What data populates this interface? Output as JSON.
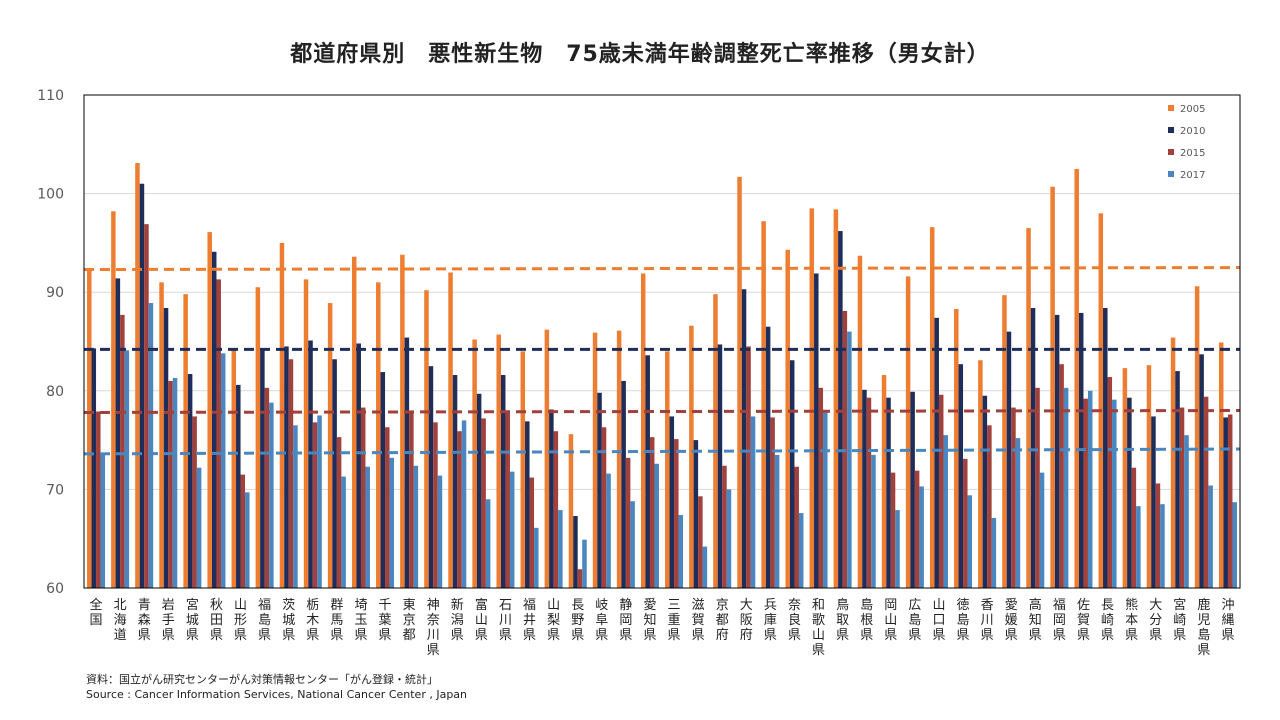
{
  "chart_data": {
    "type": "bar",
    "title": "都道府県別　悪性新生物　75歳未満年齢調整死亡率推移（男女計）",
    "xlabel": "",
    "ylabel": "",
    "ylim": [
      60,
      110
    ],
    "yticks": [
      60,
      70,
      80,
      90,
      100,
      110
    ],
    "legend_position": "top-right",
    "categories": [
      "全国",
      "北海道",
      "青森県",
      "岩手県",
      "宮城県",
      "秋田県",
      "山形県",
      "福島県",
      "茨城県",
      "栃木県",
      "群馬県",
      "埼玉県",
      "千葉県",
      "東京都",
      "神奈川県",
      "新潟県",
      "富山県",
      "石川県",
      "福井県",
      "山梨県",
      "長野県",
      "岐阜県",
      "静岡県",
      "愛知県",
      "三重県",
      "滋賀県",
      "京都府",
      "大阪府",
      "兵庫県",
      "奈良県",
      "和歌山県",
      "鳥取県",
      "島根県",
      "岡山県",
      "広島県",
      "山口県",
      "徳島県",
      "香川県",
      "愛媛県",
      "高知県",
      "福岡県",
      "佐賀県",
      "長崎県",
      "熊本県",
      "大分県",
      "宮崎県",
      "鹿児島県",
      "沖縄県"
    ],
    "series": [
      {
        "name": "2005",
        "color": "#ed7d31",
        "values": [
          92.4,
          98.2,
          103.1,
          91.0,
          89.8,
          96.1,
          84.3,
          90.5,
          95.0,
          91.3,
          88.9,
          93.6,
          91.0,
          93.8,
          90.2,
          92.0,
          85.2,
          85.7,
          84.0,
          86.2,
          75.6,
          85.9,
          86.1,
          91.9,
          84.0,
          86.6,
          89.8,
          101.7,
          97.2,
          94.3,
          98.5,
          98.4,
          93.7,
          81.6,
          91.6,
          96.6,
          88.3,
          83.1,
          89.7,
          96.5,
          100.7,
          102.5,
          98.0,
          82.3,
          82.6,
          85.4,
          90.6,
          84.9
        ]
      },
      {
        "name": "2010",
        "color": "#1f2d5a",
        "values": [
          84.3,
          91.4,
          101.0,
          88.4,
          81.7,
          94.1,
          80.6,
          84.1,
          84.5,
          85.1,
          83.2,
          84.8,
          81.9,
          85.4,
          82.5,
          81.6,
          79.7,
          81.6,
          76.9,
          78.1,
          67.3,
          79.8,
          81.0,
          83.6,
          77.4,
          75.0,
          84.7,
          90.3,
          86.5,
          83.1,
          91.9,
          96.2,
          80.1,
          79.3,
          79.9,
          87.4,
          82.7,
          79.5,
          86.0,
          88.4,
          87.7,
          87.9,
          88.4,
          79.3,
          77.4,
          82.0,
          83.7,
          77.3
        ]
      },
      {
        "name": "2015",
        "color": "#a0413c",
        "values": [
          77.9,
          87.7,
          96.9,
          81.0,
          77.4,
          91.3,
          71.5,
          80.3,
          83.2,
          76.8,
          75.3,
          78.3,
          76.3,
          77.9,
          76.8,
          75.9,
          77.2,
          77.9,
          71.2,
          75.9,
          61.9,
          76.3,
          73.2,
          75.3,
          75.1,
          69.3,
          72.4,
          84.5,
          77.3,
          72.3,
          80.3,
          88.1,
          79.3,
          71.7,
          71.9,
          79.6,
          73.1,
          76.5,
          78.3,
          80.3,
          82.7,
          79.2,
          81.4,
          72.2,
          70.6,
          78.3,
          79.4,
          77.6
        ]
      },
      {
        "name": "2017",
        "color": "#4a86bf",
        "values": [
          73.6,
          84.1,
          88.9,
          81.3,
          72.2,
          83.8,
          69.7,
          78.8,
          76.5,
          77.5,
          71.3,
          72.3,
          73.2,
          72.4,
          71.4,
          77.0,
          69.0,
          71.8,
          66.1,
          67.9,
          64.9,
          71.6,
          68.8,
          72.6,
          67.4,
          64.2,
          70.0,
          77.4,
          73.5,
          67.6,
          78.0,
          86.0,
          73.5,
          67.9,
          70.3,
          75.5,
          69.4,
          67.1,
          75.2,
          71.7,
          80.3,
          80.0,
          79.1,
          68.3,
          68.5,
          75.5,
          70.4,
          68.7
        ]
      }
    ],
    "trendlines": [
      {
        "name": "2005",
        "color": "#ed7d31",
        "start": 92.3,
        "end": 92.5
      },
      {
        "name": "2010",
        "color": "#1f2d5a",
        "start": 84.2,
        "end": 84.2
      },
      {
        "name": "2015",
        "color": "#a0413c",
        "start": 77.8,
        "end": 78.0
      },
      {
        "name": "2017",
        "color": "#4a86bf",
        "start": 73.6,
        "end": 74.1
      }
    ]
  },
  "source": {
    "ja": "資料：国立がん研究センターがん対策情報センター「がん登録・統計」",
    "en": "Source : Cancer Information Services, National Cancer Center , Japan"
  }
}
